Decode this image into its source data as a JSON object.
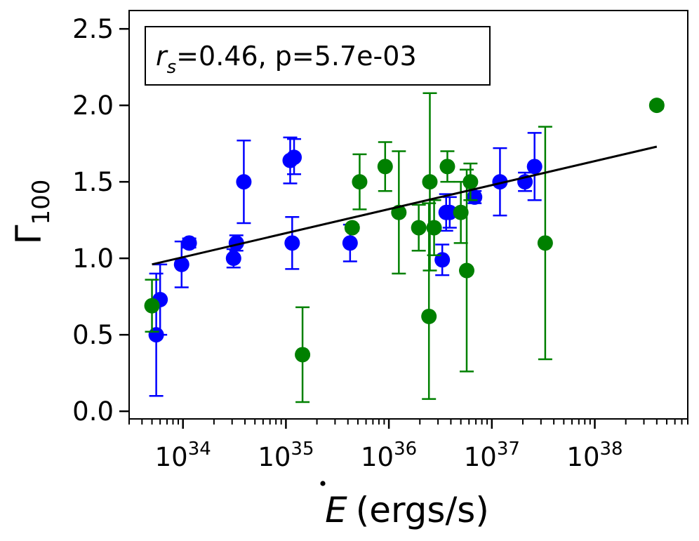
{
  "chart_data": {
    "type": "scatter",
    "title": "",
    "xlabel": "Ė (ergs/s)",
    "ylabel": "Γ100",
    "xlabel_parts": {
      "symbol": "E",
      "unit": "(ergs/s)"
    },
    "ylabel_parts": {
      "symbol": "Γ",
      "subscript": "100"
    },
    "xscale": "log",
    "xlim": [
      3e+33,
      8e+38
    ],
    "ylim": [
      -0.05,
      2.62
    ],
    "x_ticks": [
      {
        "value": 1e+34,
        "base": "10",
        "exp": "34"
      },
      {
        "value": 1e+35,
        "base": "10",
        "exp": "35"
      },
      {
        "value": 1e+36,
        "base": "10",
        "exp": "36"
      },
      {
        "value": 1e+37,
        "base": "10",
        "exp": "37"
      },
      {
        "value": 1e+38,
        "base": "10",
        "exp": "38"
      }
    ],
    "y_ticks": [
      {
        "value": 0.0,
        "label": "0.0"
      },
      {
        "value": 0.5,
        "label": "0.5"
      },
      {
        "value": 1.0,
        "label": "1.0"
      },
      {
        "value": 1.5,
        "label": "1.5"
      },
      {
        "value": 2.0,
        "label": "2.0"
      },
      {
        "value": 2.5,
        "label": "2.5"
      }
    ],
    "annotation": {
      "symbol": "r",
      "subscript": "s",
      "text": "=0.46, p=5.7e-03",
      "placement": "top-left"
    },
    "fit_line": {
      "color": "#000000",
      "x": [
        5e+33,
        4e+38
      ],
      "y": [
        0.96,
        1.73
      ]
    },
    "series": [
      {
        "name": "blue",
        "color": "#0000ff",
        "points": [
          {
            "x": 5.5e+33,
            "y": 0.5,
            "lo": 0.1,
            "hi": 0.9
          },
          {
            "x": 6e+33,
            "y": 0.73,
            "lo": 0.5,
            "hi": 0.96
          },
          {
            "x": 9.7e+33,
            "y": 0.96,
            "lo": 0.81,
            "hi": 1.11
          },
          {
            "x": 1.15e+34,
            "y": 1.1,
            "lo": 1.07,
            "hi": 1.13
          },
          {
            "x": 3.1e+34,
            "y": 1.0,
            "lo": 0.94,
            "hi": 1.06
          },
          {
            "x": 3.3e+34,
            "y": 1.1,
            "lo": 1.05,
            "hi": 1.15
          },
          {
            "x": 3.9e+34,
            "y": 1.5,
            "lo": 1.23,
            "hi": 1.77
          },
          {
            "x": 1.1e+35,
            "y": 1.64,
            "lo": 1.49,
            "hi": 1.79
          },
          {
            "x": 1.2e+35,
            "y": 1.66,
            "lo": 1.55,
            "hi": 1.78
          },
          {
            "x": 1.15e+35,
            "y": 1.1,
            "lo": 0.93,
            "hi": 1.27
          },
          {
            "x": 4.2e+35,
            "y": 1.1,
            "lo": 0.98,
            "hi": 1.22
          },
          {
            "x": 3.3e+36,
            "y": 0.99,
            "lo": 0.89,
            "hi": 1.09
          },
          {
            "x": 3.6e+36,
            "y": 1.3,
            "lo": 1.18,
            "hi": 1.42
          },
          {
            "x": 3.9e+36,
            "y": 1.3,
            "lo": 1.2,
            "hi": 1.4
          },
          {
            "x": 6.8e+36,
            "y": 1.4,
            "lo": 1.36,
            "hi": 1.44
          },
          {
            "x": 1.2e+37,
            "y": 1.5,
            "lo": 1.28,
            "hi": 1.72
          },
          {
            "x": 2.1e+37,
            "y": 1.5,
            "lo": 1.44,
            "hi": 1.56
          },
          {
            "x": 2.6e+37,
            "y": 1.6,
            "lo": 1.38,
            "hi": 1.82
          }
        ]
      },
      {
        "name": "green",
        "color": "#008000",
        "points": [
          {
            "x": 5e+33,
            "y": 0.69,
            "lo": 0.52,
            "hi": 0.86
          },
          {
            "x": 1.45e+35,
            "y": 0.37,
            "lo": 0.06,
            "hi": 0.68
          },
          {
            "x": 4.4e+35,
            "y": 1.2,
            "lo": 1.18,
            "hi": 1.22
          },
          {
            "x": 5.2e+35,
            "y": 1.5,
            "lo": 1.32,
            "hi": 1.68
          },
          {
            "x": 9.2e+35,
            "y": 1.6,
            "lo": 1.44,
            "hi": 1.76
          },
          {
            "x": 1.25e+36,
            "y": 1.3,
            "lo": 0.9,
            "hi": 1.7
          },
          {
            "x": 1.95e+36,
            "y": 1.2,
            "lo": 1.05,
            "hi": 1.35
          },
          {
            "x": 2.45e+36,
            "y": 0.62,
            "lo": 0.08,
            "hi": 1.36
          },
          {
            "x": 2.5e+36,
            "y": 1.5,
            "lo": 0.92,
            "hi": 2.08
          },
          {
            "x": 2.75e+36,
            "y": 1.2,
            "lo": 1.02,
            "hi": 1.38
          },
          {
            "x": 3.7e+36,
            "y": 1.6,
            "lo": 1.5,
            "hi": 1.7
          },
          {
            "x": 5e+36,
            "y": 1.3,
            "lo": 1.1,
            "hi": 1.5
          },
          {
            "x": 5.7e+36,
            "y": 0.92,
            "lo": 0.26,
            "hi": 1.58
          },
          {
            "x": 6.2e+36,
            "y": 1.5,
            "lo": 1.38,
            "hi": 1.62
          },
          {
            "x": 3.3e+37,
            "y": 1.1,
            "lo": 0.34,
            "hi": 1.86
          },
          {
            "x": 4e+38,
            "y": 2.0,
            "lo": 1.98,
            "hi": 2.02
          }
        ]
      }
    ]
  }
}
